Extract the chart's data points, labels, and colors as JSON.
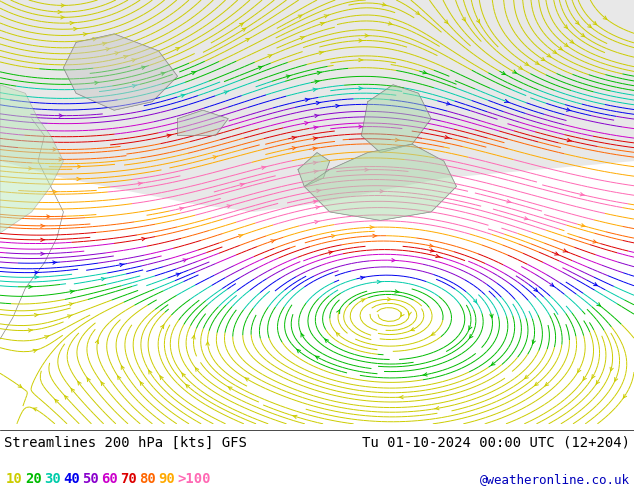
{
  "title_left": "Streamlines 200 hPa [kts] GFS",
  "title_right": "Tu 01-10-2024 00:00 UTC (12+204)",
  "credit": "@weatheronline.co.uk",
  "legend_labels": [
    "10",
    "20",
    "30",
    "40",
    "50",
    "60",
    "70",
    "80",
    "90",
    ">100"
  ],
  "legend_colors": [
    "#cccc00",
    "#00bb00",
    "#00ccaa",
    "#0000ee",
    "#8800cc",
    "#cc00cc",
    "#dd0000",
    "#ff6600",
    "#ffaa00",
    "#ff69b4"
  ],
  "map_bg_land": "#90ee90",
  "map_bg_ocean": "#d8d8d8",
  "map_bg_polar": "#e8e8e8",
  "coast_color": "#888888",
  "title_fontsize": 10,
  "credit_fontsize": 9,
  "legend_fontsize": 10,
  "figsize": [
    6.34,
    4.9
  ],
  "dpi": 100
}
